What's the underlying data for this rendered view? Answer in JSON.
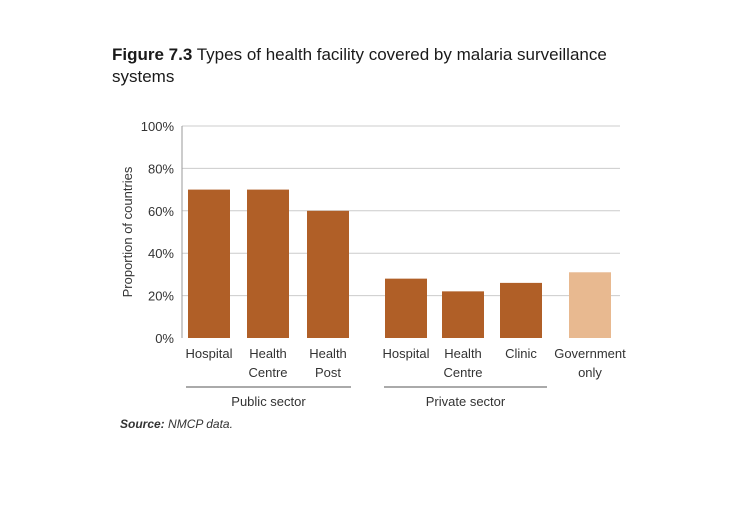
{
  "figure": {
    "label": "Figure 7.3",
    "title": "Types of health facility covered by malaria surveillance systems"
  },
  "source": {
    "label": "Source:",
    "text": "NMCP data."
  },
  "colors": {
    "bar_main": "#b05f27",
    "bar_highlight": "#e8b990",
    "grid": "#cccccc",
    "text": "#333333"
  },
  "chart_data": {
    "type": "bar",
    "ylabel": "Proportion of countries",
    "ylim": [
      0,
      100
    ],
    "y_ticks": [
      "0%",
      "20%",
      "40%",
      "60%",
      "80%",
      "100%"
    ],
    "y_tick_values": [
      0,
      20,
      40,
      60,
      80,
      100
    ],
    "grid": true,
    "categories": [
      {
        "label": [
          "Hospital"
        ],
        "value": 70,
        "group": "Public sector",
        "highlight": false
      },
      {
        "label": [
          "Health",
          "Centre"
        ],
        "value": 70,
        "group": "Public sector",
        "highlight": false
      },
      {
        "label": [
          "Health",
          "Post"
        ],
        "value": 60,
        "group": "Public sector",
        "highlight": false
      },
      {
        "label": [
          "Hospital"
        ],
        "value": 28,
        "group": "Private sector",
        "highlight": false
      },
      {
        "label": [
          "Health",
          "Centre"
        ],
        "value": 22,
        "group": "Private sector",
        "highlight": false
      },
      {
        "label": [
          "Clinic"
        ],
        "value": 26,
        "group": "Private sector",
        "highlight": false
      },
      {
        "label": [
          "Government",
          "only"
        ],
        "value": 31,
        "group": "",
        "highlight": true
      }
    ],
    "groups": [
      "Public sector",
      "Private sector"
    ]
  }
}
